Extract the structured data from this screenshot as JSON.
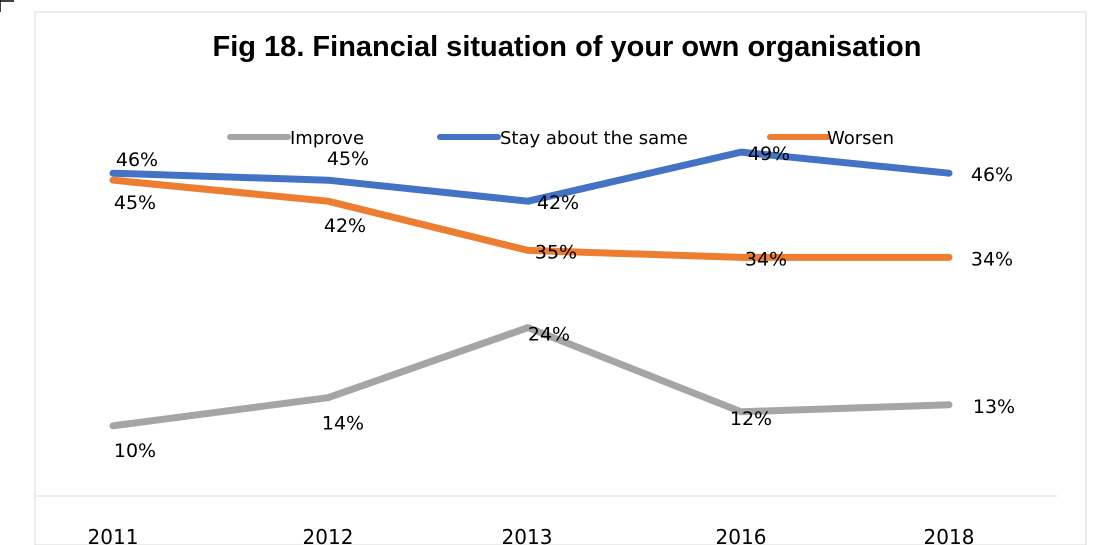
{
  "chart_data": {
    "type": "line",
    "title": "Fig 18. Financial situation of your own organisation",
    "categories": [
      "2011",
      "2012",
      "2013",
      "2016",
      "2018"
    ],
    "ylim": [
      0,
      55
    ],
    "grid": false,
    "legend_position": "top",
    "series": [
      {
        "name": "Improve",
        "color": "#a5a5a5",
        "values": [
          10,
          14,
          24,
          12,
          13
        ],
        "labels": [
          "10%",
          "14%",
          "24%",
          "12%",
          "13%"
        ]
      },
      {
        "name": "Stay about the same",
        "color": "#4472c4",
        "values": [
          46,
          45,
          42,
          49,
          46
        ],
        "labels": [
          "46%",
          "45%",
          "42%",
          "49%",
          "46%"
        ]
      },
      {
        "name": "Worsen",
        "color": "#ed7d31",
        "values": [
          45,
          42,
          35,
          34,
          34
        ],
        "labels": [
          "45%",
          "42%",
          "35%",
          "34%",
          "34%"
        ]
      }
    ]
  }
}
